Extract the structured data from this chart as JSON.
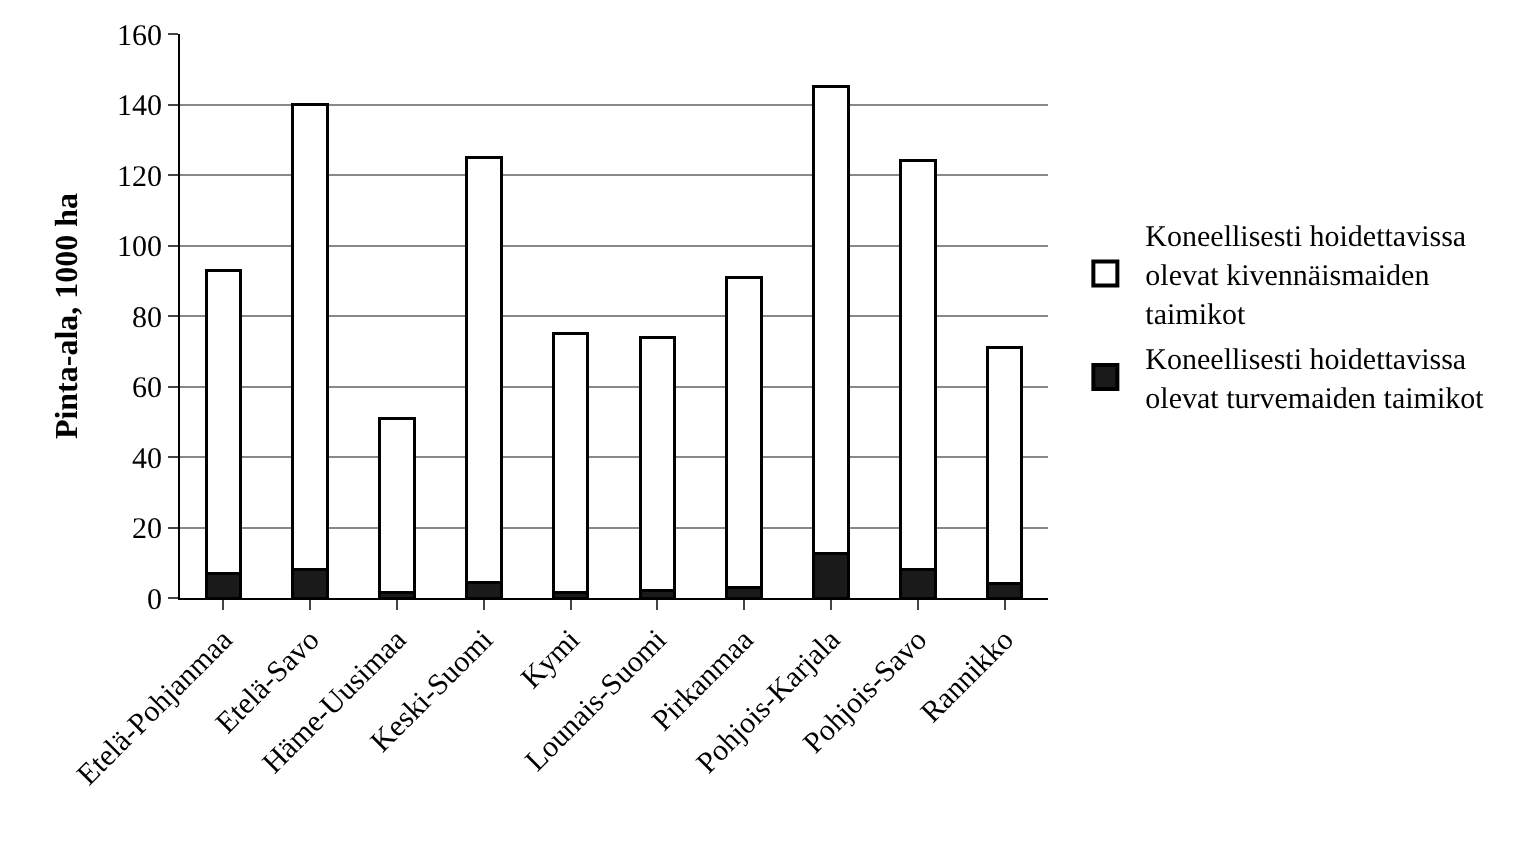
{
  "chart_data": {
    "type": "bar",
    "stacked": true,
    "ylabel": "Pinta-ala, 1000 ha",
    "categories": [
      "Etelä-Pohjanmaa",
      "Etelä-Savo",
      "Häme-Uusimaa",
      "Keski-Suomi",
      "Kymi",
      "Lounais-Suomi",
      "Pirkanmaa",
      "Pohjois-Karjala",
      "Pohjois-Savo",
      "Rannikko"
    ],
    "series": [
      {
        "name": "Koneellisesti hoidettavissa olevat turvemaiden taimikot",
        "color": "#1a1a1a",
        "values": [
          7,
          8,
          1.5,
          4.5,
          1.5,
          2,
          3,
          12.5,
          8,
          4
        ]
      },
      {
        "name": "Koneellisesti hoidettavissa olevat kivennäismaiden taimikot",
        "color": "#ffffff",
        "values": [
          86,
          132,
          49.5,
          120.5,
          73.5,
          72,
          88,
          132.5,
          116,
          67
        ]
      }
    ],
    "ylim": [
      0,
      160
    ],
    "yticks": [
      0,
      20,
      40,
      60,
      80,
      100,
      120,
      140,
      160
    ],
    "grid": "y",
    "legend": "right"
  }
}
